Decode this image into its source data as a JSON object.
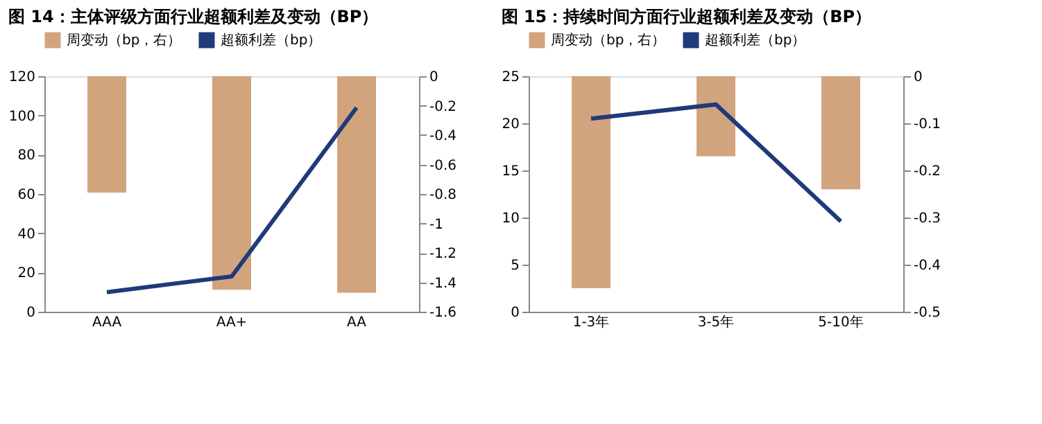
{
  "chart_data": [
    {
      "type": "bar",
      "title": "图 14：主体评级方面行业超额利差及变动（BP）",
      "categories": [
        "AAA",
        "AA+",
        "AA"
      ],
      "series": [
        {
          "name": "周变动（bp，右）",
          "type": "bar",
          "axis": "y2",
          "color": "#d2a47e",
          "values": [
            -0.79,
            -1.45,
            -1.47
          ]
        },
        {
          "name": "超额利差（bp）",
          "type": "line",
          "color": "#1f3a7a",
          "values": [
            10,
            18,
            104
          ]
        }
      ],
      "ylim": [
        0,
        120
      ],
      "yticks": [
        0,
        20,
        40,
        60,
        80,
        100,
        120
      ],
      "y2lim": [
        -1.6,
        0
      ],
      "y2ticks": [
        -1.6,
        -1.4,
        -1.2,
        -1,
        -0.8,
        -0.6,
        -0.4,
        -0.2,
        0
      ],
      "legend": "top",
      "grid": false
    },
    {
      "type": "bar",
      "title": "图 15：持续时间方面行业超额利差及变动（BP）",
      "categories": [
        "1-3年",
        "3-5年",
        "5-10年"
      ],
      "series": [
        {
          "name": "周变动（bp，右）",
          "type": "bar",
          "axis": "y2",
          "color": "#d2a47e",
          "values": [
            -0.45,
            -0.17,
            -0.24
          ]
        },
        {
          "name": "超额利差（bp）",
          "type": "line",
          "color": "#1f3a7a",
          "values": [
            20.5,
            22.0,
            9.6
          ]
        }
      ],
      "ylim": [
        0,
        25
      ],
      "yticks": [
        0,
        5,
        10,
        15,
        20,
        25
      ],
      "y2lim": [
        -0.5,
        0
      ],
      "y2ticks": [
        -0.5,
        -0.4,
        -0.3,
        -0.2,
        -0.1,
        0
      ],
      "legend": "top",
      "grid": false
    }
  ]
}
